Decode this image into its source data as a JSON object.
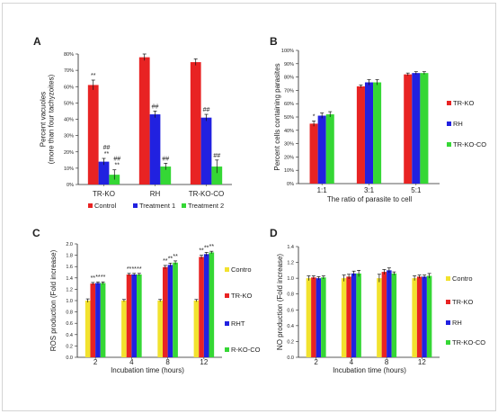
{
  "chart_data": [
    {
      "panel": "A",
      "type": "bar",
      "ylabel": "Percent vacuoles\n(more than four tachyzoites)",
      "xlabel": "",
      "ylim": [
        0,
        80
      ],
      "yticks": [
        "0%",
        "10%",
        "20%",
        "30%",
        "40%",
        "50%",
        "60%",
        "70%",
        "80%"
      ],
      "categories": [
        "TR-KO",
        "RH",
        "TR-KO-CO"
      ],
      "series": [
        {
          "name": "Control",
          "color": "#e82323",
          "values": [
            61,
            78,
            75
          ],
          "errors": [
            3,
            2,
            2
          ]
        },
        {
          "name": "Treatment 1",
          "color": "#2121e0",
          "values": [
            14,
            43,
            41
          ],
          "errors": [
            2,
            2,
            2
          ]
        },
        {
          "name": "Treatment 2",
          "color": "#35d735",
          "values": [
            6,
            11,
            11
          ],
          "errors": [
            3,
            2,
            4
          ]
        }
      ],
      "annotations": [
        {
          "category": 0,
          "series": 0,
          "text": "**"
        },
        {
          "category": 0,
          "series": 1,
          "text": "##\n**"
        },
        {
          "category": 0,
          "series": 2,
          "text": "##\n**"
        },
        {
          "category": 1,
          "series": 1,
          "text": "##"
        },
        {
          "category": 1,
          "series": 2,
          "text": "##"
        },
        {
          "category": 2,
          "series": 1,
          "text": "##"
        },
        {
          "category": 2,
          "series": 2,
          "text": "##"
        }
      ],
      "legend": [
        "Control",
        "Treatment 1",
        "Treatment 2"
      ],
      "legend_position": "bottom"
    },
    {
      "panel": "B",
      "type": "bar",
      "ylabel": "Percent cells containing parasites",
      "xlabel": "The ratio of parasite to cell",
      "ylim": [
        0,
        100
      ],
      "yticks": [
        "0%",
        "10%",
        "20%",
        "30%",
        "40%",
        "50%",
        "60%",
        "70%",
        "80%",
        "90%",
        "100%"
      ],
      "categories": [
        "1:1",
        "3:1",
        "5:1"
      ],
      "series": [
        {
          "name": "TR-KO",
          "color": "#e82323",
          "values": [
            45,
            73,
            82
          ],
          "errors": [
            2,
            1,
            1
          ]
        },
        {
          "name": "RH",
          "color": "#2121e0",
          "values": [
            51,
            76,
            83
          ],
          "errors": [
            2,
            2,
            1
          ]
        },
        {
          "name": "TR-KO-CO",
          "color": "#35d735",
          "values": [
            52,
            76,
            83
          ],
          "errors": [
            2,
            2,
            1
          ]
        }
      ],
      "annotations": [
        {
          "category": 0,
          "series": 0,
          "text": "*"
        }
      ],
      "legend": [
        "TR-KO",
        "RH",
        "TR-KO-CO"
      ],
      "legend_position": "right"
    },
    {
      "panel": "C",
      "type": "bar",
      "ylabel": "ROS production (Fold increase)",
      "xlabel": "Incubation time (hours)",
      "ylim": [
        0,
        2.0
      ],
      "yticks": [
        "0.0",
        "0.2",
        "0.4",
        "0.6",
        "0.8",
        "1.0",
        "1.2",
        "1.4",
        "1.6",
        "1.8",
        "2.0"
      ],
      "categories": [
        "2",
        "4",
        "8",
        "12"
      ],
      "series": [
        {
          "name": "Control",
          "color": "#f2e22e",
          "values": [
            1.0,
            1.0,
            1.0,
            1.0
          ],
          "errors": [
            0.03,
            0.02,
            0.02,
            0.02
          ]
        },
        {
          "name": "TR-KO",
          "color": "#e82323",
          "values": [
            1.3,
            1.46,
            1.59,
            1.77
          ],
          "errors": [
            0.02,
            0.02,
            0.03,
            0.03
          ]
        },
        {
          "name": "RH",
          "color": "#2121e0",
          "values": [
            1.31,
            1.46,
            1.63,
            1.82
          ],
          "errors": [
            0.02,
            0.02,
            0.03,
            0.03
          ]
        },
        {
          "name": "TR-KO-CO",
          "color": "#35d735",
          "values": [
            1.31,
            1.46,
            1.67,
            1.85
          ],
          "errors": [
            0.02,
            0.02,
            0.03,
            0.02
          ]
        }
      ],
      "annotations": [
        {
          "category": 0,
          "series": 1,
          "text": "**"
        },
        {
          "category": 0,
          "series": 2,
          "text": "**"
        },
        {
          "category": 0,
          "series": 3,
          "text": "**"
        },
        {
          "category": 1,
          "series": 1,
          "text": "**"
        },
        {
          "category": 1,
          "series": 2,
          "text": "**"
        },
        {
          "category": 1,
          "series": 3,
          "text": "**"
        },
        {
          "category": 2,
          "series": 1,
          "text": "**"
        },
        {
          "category": 2,
          "series": 2,
          "text": "**"
        },
        {
          "category": 2,
          "series": 3,
          "text": "**"
        },
        {
          "category": 3,
          "series": 1,
          "text": "**"
        },
        {
          "category": 3,
          "series": 2,
          "text": "**"
        },
        {
          "category": 3,
          "series": 3,
          "text": "**"
        }
      ],
      "legend": [
        "Contro",
        "TR-KO",
        "RHT",
        "R-KO-CO"
      ],
      "legend_position": "right"
    },
    {
      "panel": "D",
      "type": "bar",
      "ylabel": "NO production (Fold increase)",
      "xlabel": "Incubation time (hours)",
      "ylim": [
        0,
        1.4
      ],
      "yticks": [
        "0.0",
        "0.2",
        "0.4",
        "0.6",
        "0.8",
        "1.0",
        "1.2",
        "1.4"
      ],
      "categories": [
        "2",
        "4",
        "8",
        "12"
      ],
      "series": [
        {
          "name": "Control",
          "color": "#f2e22e",
          "values": [
            1.0,
            1.0,
            1.0,
            1.0
          ],
          "errors": [
            0.03,
            0.04,
            0.05,
            0.03
          ]
        },
        {
          "name": "TR-KO",
          "color": "#e82323",
          "values": [
            1.01,
            1.02,
            1.08,
            1.02
          ],
          "errors": [
            0.02,
            0.03,
            0.03,
            0.02
          ]
        },
        {
          "name": "RH",
          "color": "#2121e0",
          "values": [
            1.0,
            1.06,
            1.1,
            1.02
          ],
          "errors": [
            0.02,
            0.03,
            0.03,
            0.02
          ]
        },
        {
          "name": "TR-KO-CO",
          "color": "#35d735",
          "values": [
            1.01,
            1.06,
            1.06,
            1.03
          ],
          "errors": [
            0.02,
            0.04,
            0.02,
            0.03
          ]
        }
      ],
      "annotations": [],
      "legend": [
        "Contro",
        "TR-KO",
        "RH",
        "TR-KO-CO"
      ],
      "legend_position": "right"
    }
  ]
}
